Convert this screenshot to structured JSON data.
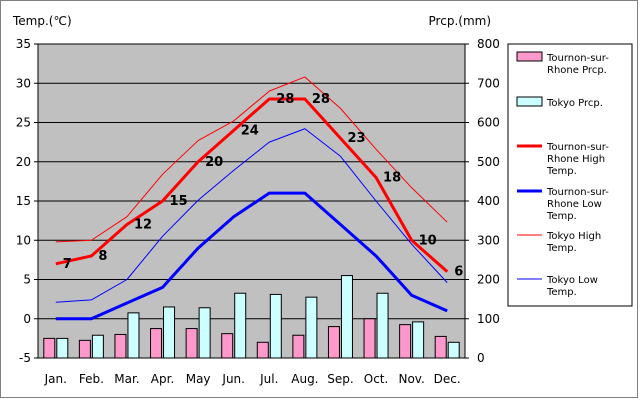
{
  "chart_data": {
    "type": "line+bar",
    "left_axis_title": "Temp.(℃)",
    "right_axis_title": "Prcp.(mm)",
    "categories": [
      "Jan.",
      "Feb.",
      "Mar.",
      "Apr.",
      "May",
      "Jun.",
      "Jul.",
      "Aug.",
      "Sep.",
      "Oct.",
      "Nov.",
      "Dec."
    ],
    "ylim_left": [
      -5,
      35
    ],
    "yticks_left": [
      -5,
      0,
      5,
      10,
      15,
      20,
      25,
      30,
      35
    ],
    "ylim_right": [
      0,
      800
    ],
    "yticks_right": [
      0,
      100,
      200,
      300,
      400,
      500,
      600,
      700,
      800
    ],
    "grid": "horizontal",
    "legend_position": "right",
    "plot_background": "#c0c0c0",
    "bar_series": [
      {
        "name": "Tournon-sur-Rhone Prcp.",
        "color": "#ff99cc",
        "values": [
          50,
          45,
          60,
          75,
          75,
          62,
          40,
          58,
          80,
          100,
          85,
          55
        ]
      },
      {
        "name": "Tokyo Prcp.",
        "color": "#ccffff",
        "values": [
          50,
          58,
          115,
          130,
          128,
          165,
          162,
          155,
          210,
          165,
          92,
          40
        ]
      }
    ],
    "line_series": [
      {
        "name": "Tournon-sur-Rhone High Temp.",
        "color": "#ff0000",
        "width": 3,
        "values": [
          7,
          8,
          12,
          15,
          20,
          24,
          28,
          28,
          23,
          18,
          10,
          6
        ],
        "labels": [
          "7",
          "8",
          "12",
          "15",
          "20",
          "24",
          "28",
          "28",
          "23",
          "18",
          "10",
          "6"
        ]
      },
      {
        "name": "Tournon-sur-Rhone Low Temp.",
        "color": "#0000ff",
        "width": 3,
        "values": [
          0,
          0,
          2,
          4,
          9,
          13,
          16,
          16,
          12,
          8,
          3,
          1
        ]
      },
      {
        "name": "Tokyo High Temp.",
        "color": "#ff0000",
        "width": 1,
        "values": [
          9.8,
          10,
          13,
          18.4,
          22.7,
          25.2,
          29,
          30.8,
          26.8,
          21.6,
          16.7,
          12.3
        ]
      },
      {
        "name": "Tokyo Low Temp.",
        "color": "#0000ff",
        "width": 1,
        "values": [
          2.1,
          2.4,
          5,
          10.5,
          15.1,
          18.9,
          22.5,
          24.2,
          20.7,
          15.0,
          9.5,
          4.6
        ]
      }
    ]
  },
  "legend": {
    "items": [
      {
        "label_lines": [
          "Tournon-sur-",
          "Rhone Prcp."
        ]
      },
      {
        "label_lines": [
          "Tokyo Prcp."
        ]
      },
      {
        "label_lines": [
          "Tournon-sur-",
          "Rhone High",
          "Temp."
        ]
      },
      {
        "label_lines": [
          "Tournon-sur-",
          "Rhone Low",
          "Temp."
        ]
      },
      {
        "label_lines": [
          "Tokyo High",
          "Temp."
        ]
      },
      {
        "label_lines": [
          "Tokyo Low",
          "Temp."
        ]
      }
    ]
  }
}
